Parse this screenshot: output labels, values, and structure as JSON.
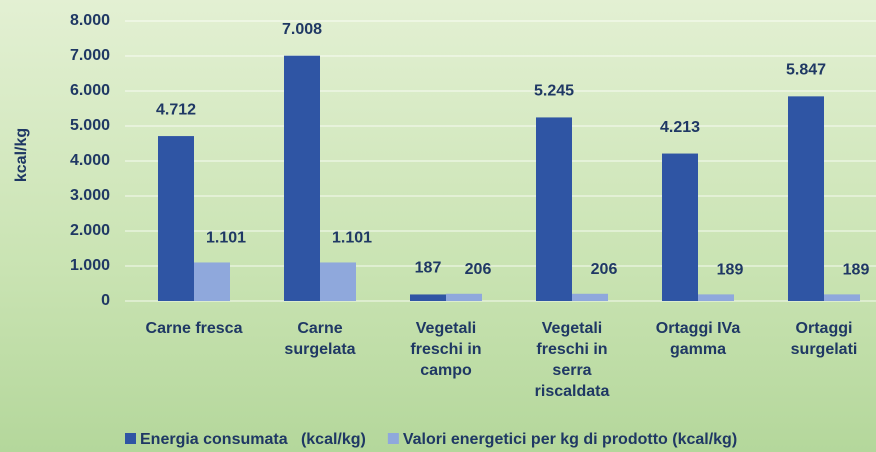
{
  "chart_data": {
    "type": "bar",
    "y_label": "kcal/kg",
    "categories": [
      "Carne fresca",
      "Carne surgelata",
      "Vegetali freschi in campo",
      "Vegetali freschi in serra riscaldata",
      "Ortaggi IVa gamma",
      "Ortaggi surgelati"
    ],
    "series": [
      {
        "name": "Energia consumata   (kcal/kg)",
        "color": "#2f55a4",
        "values": [
          4712,
          7008,
          187,
          5245,
          4213,
          5847
        ],
        "value_labels": [
          "4.712",
          "7.008",
          "187",
          "5.245",
          "4.213",
          "5.847"
        ]
      },
      {
        "name": "Valori energetici per kg di prodotto (kcal/kg)",
        "color": "#8fa8dc",
        "values": [
          1101,
          1101,
          206,
          206,
          189,
          189
        ],
        "value_labels": [
          "1.101",
          "1.101",
          "206",
          "206",
          "189",
          "189"
        ]
      }
    ],
    "ylim": [
      0,
      8000
    ],
    "yticks": [
      0,
      {
        "value": 1000,
        "label": "1.000"
      },
      {
        "value": 2000,
        "label": "2.000"
      },
      {
        "value": 3000,
        "label": "3.000"
      },
      {
        "value": 4000,
        "label": "4.000"
      },
      {
        "value": 5000,
        "label": "5.000"
      },
      {
        "value": 6000,
        "label": "6.000"
      },
      {
        "value": 7000,
        "label": "7.000"
      },
      {
        "value": 8000,
        "label": "8.000"
      }
    ],
    "grid": true,
    "legend": "bottom"
  }
}
